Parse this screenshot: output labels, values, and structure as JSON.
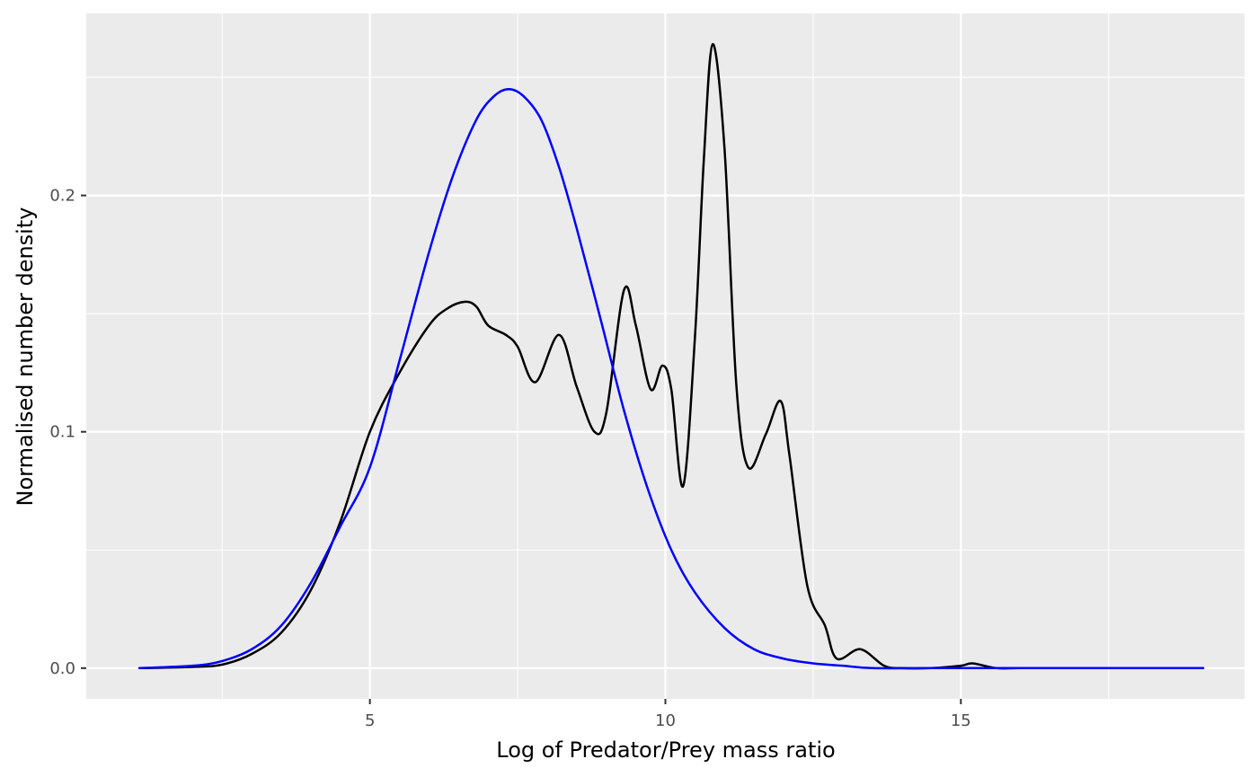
{
  "chart_data": {
    "type": "line",
    "title": "",
    "xlabel": "Log of Predator/Prey mass ratio",
    "ylabel": "Normalised number density",
    "xlim": [
      0.2,
      19.8
    ],
    "ylim": [
      -0.013,
      0.277
    ],
    "x_ticks": [
      5,
      10,
      15
    ],
    "x_tick_labels": [
      "5",
      "10",
      "15"
    ],
    "x_minor_ticks": [
      2.5,
      7.5,
      12.5,
      17.5
    ],
    "y_ticks": [
      0.0,
      0.1,
      0.2
    ],
    "y_tick_labels": [
      "0.0",
      "0.1",
      "0.2"
    ],
    "y_minor_ticks": [
      0.05,
      0.15,
      0.25
    ],
    "grid": true,
    "legend": "none",
    "colors": {
      "panel": "#ebebeb",
      "grid": "#ffffff",
      "observed": "#000000",
      "fitted": "#0000ff"
    },
    "series": [
      {
        "color": "#000000",
        "x": [
          1.1,
          2.0,
          2.5,
          3.0,
          3.5,
          4.0,
          4.5,
          5.0,
          5.5,
          6.0,
          6.3,
          6.6,
          6.8,
          7.0,
          7.3,
          7.5,
          7.8,
          8.2,
          8.5,
          8.8,
          9.0,
          9.3,
          9.5,
          9.75,
          9.95,
          10.1,
          10.3,
          10.5,
          10.65,
          10.8,
          11.0,
          11.2,
          11.4,
          11.7,
          11.95,
          12.1,
          12.4,
          12.7,
          12.9,
          13.3,
          13.7,
          14.0,
          14.5,
          15.0,
          15.2,
          15.6,
          16.0,
          17.0,
          18.0,
          19.1
        ],
        "y": [
          0.0,
          0.0005,
          0.0015,
          0.006,
          0.015,
          0.033,
          0.062,
          0.1,
          0.125,
          0.145,
          0.152,
          0.155,
          0.153,
          0.145,
          0.141,
          0.136,
          0.121,
          0.141,
          0.119,
          0.1,
          0.108,
          0.16,
          0.145,
          0.118,
          0.128,
          0.118,
          0.077,
          0.14,
          0.215,
          0.264,
          0.22,
          0.12,
          0.085,
          0.099,
          0.113,
          0.09,
          0.035,
          0.018,
          0.004,
          0.008,
          0.001,
          0.0,
          0.0,
          0.001,
          0.002,
          0.0,
          0.0,
          0.0,
          0.0,
          0.0
        ]
      },
      {
        "color": "#0000ff",
        "x": [
          1.1,
          2.0,
          2.5,
          3.0,
          3.5,
          4.0,
          4.5,
          5.0,
          5.5,
          6.0,
          6.4,
          6.8,
          7.1,
          7.35,
          7.6,
          7.9,
          8.2,
          8.5,
          8.9,
          9.3,
          9.7,
          10.1,
          10.5,
          11.0,
          11.5,
          12.0,
          12.5,
          13.0,
          13.5,
          14.5,
          15.5,
          17.0,
          19.1
        ],
        "y": [
          0.0,
          0.001,
          0.003,
          0.008,
          0.018,
          0.036,
          0.06,
          0.085,
          0.13,
          0.176,
          0.208,
          0.232,
          0.242,
          0.245,
          0.242,
          0.232,
          0.212,
          0.186,
          0.148,
          0.109,
          0.076,
          0.05,
          0.032,
          0.017,
          0.008,
          0.004,
          0.002,
          0.001,
          0.0,
          0.0,
          0.0,
          0.0,
          0.0
        ]
      }
    ]
  }
}
